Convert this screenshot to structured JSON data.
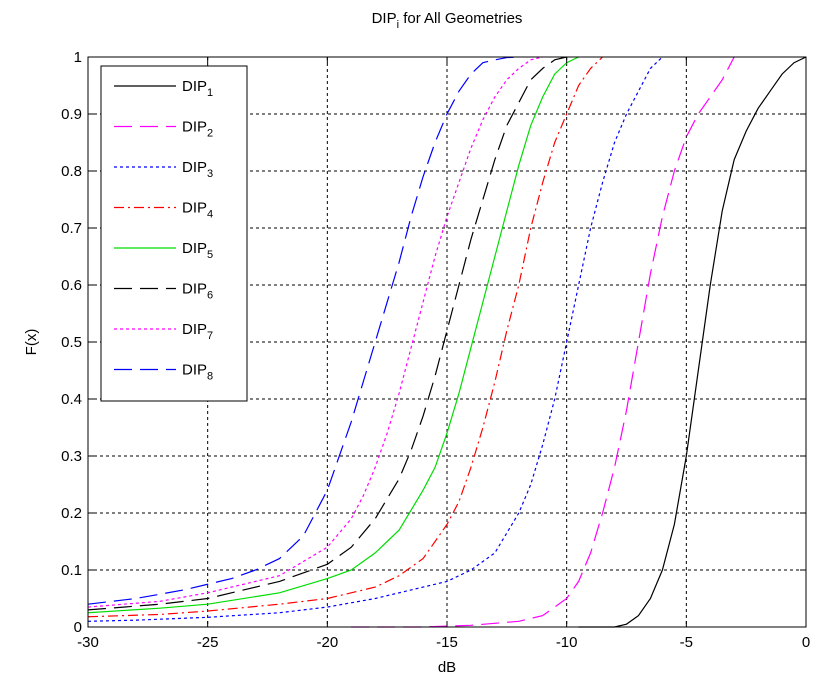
{
  "chart_data": {
    "type": "line",
    "title": "DIP",
    "title_sub": "i",
    "title_rest": " for All Geometries",
    "xlabel": "dB",
    "ylabel": "F(x)",
    "xlim": [
      -30,
      0
    ],
    "ylim": [
      0,
      1
    ],
    "grid": true,
    "legend_position": "top-left",
    "x_ticks": [
      -30,
      -25,
      -20,
      -15,
      -10,
      -5,
      0
    ],
    "y_ticks": [
      0,
      0.1,
      0.2,
      0.3,
      0.4,
      0.5,
      0.6,
      0.7,
      0.8,
      0.9,
      1
    ],
    "x_tick_labels": [
      "-30",
      "-25",
      "-20",
      "-15",
      "-10",
      "-5",
      "0"
    ],
    "y_tick_labels": [
      "0",
      "0.1",
      "0.2",
      "0.3",
      "0.4",
      "0.5",
      "0.6",
      "0.7",
      "0.8",
      "0.9",
      "1"
    ],
    "series": [
      {
        "name": "DIP",
        "sub": "1",
        "color": "#000000",
        "dash": "solid",
        "x": [
          -9.5,
          -8,
          -7.5,
          -7,
          -6.5,
          -6,
          -5.5,
          -5,
          -4.5,
          -4,
          -3.5,
          -3,
          -2.5,
          -2,
          -1.5,
          -1,
          -0.5,
          0
        ],
        "y": [
          0,
          0,
          0.005,
          0.02,
          0.05,
          0.1,
          0.18,
          0.3,
          0.45,
          0.6,
          0.73,
          0.82,
          0.87,
          0.91,
          0.94,
          0.97,
          0.99,
          1
        ]
      },
      {
        "name": "DIP",
        "sub": "2",
        "color": "#ff00ff",
        "dash": "longdash",
        "x": [
          -19,
          -16,
          -14,
          -12,
          -11,
          -10,
          -9.5,
          -9,
          -8.5,
          -8,
          -7.5,
          -7,
          -6.5,
          -6,
          -5.5,
          -5,
          -4.5,
          -4,
          -3.5,
          -3
        ],
        "y": [
          0,
          0,
          0.003,
          0.01,
          0.02,
          0.05,
          0.08,
          0.13,
          0.2,
          0.28,
          0.38,
          0.5,
          0.62,
          0.72,
          0.8,
          0.86,
          0.9,
          0.93,
          0.96,
          1
        ]
      },
      {
        "name": "DIP",
        "sub": "3",
        "color": "#0000ff",
        "dash": "dot",
        "x": [
          -30,
          -28,
          -25,
          -22,
          -20,
          -18,
          -16,
          -15,
          -14,
          -13,
          -12,
          -11.5,
          -11,
          -10.5,
          -10,
          -9.5,
          -9,
          -8.5,
          -8,
          -7.5,
          -7,
          -6.5,
          -6
        ],
        "y": [
          0.01,
          0.012,
          0.017,
          0.025,
          0.035,
          0.05,
          0.07,
          0.08,
          0.1,
          0.13,
          0.2,
          0.25,
          0.32,
          0.4,
          0.5,
          0.6,
          0.7,
          0.78,
          0.85,
          0.9,
          0.94,
          0.98,
          1
        ]
      },
      {
        "name": "DIP",
        "sub": "4",
        "color": "#ff0000",
        "dash": "dashdot",
        "x": [
          -30,
          -27,
          -25,
          -22,
          -20,
          -18,
          -17,
          -16,
          -15,
          -14.5,
          -14,
          -13.5,
          -13,
          -12.5,
          -12,
          -11.5,
          -11,
          -10.5,
          -10,
          -9.5,
          -9,
          -8.5
        ],
        "y": [
          0.018,
          0.022,
          0.028,
          0.04,
          0.05,
          0.07,
          0.09,
          0.12,
          0.18,
          0.22,
          0.28,
          0.35,
          0.43,
          0.52,
          0.6,
          0.7,
          0.78,
          0.85,
          0.9,
          0.95,
          0.98,
          1
        ]
      },
      {
        "name": "DIP",
        "sub": "5",
        "color": "#00dd00",
        "dash": "solid",
        "x": [
          -30,
          -27,
          -25,
          -22,
          -20,
          -19,
          -18,
          -17,
          -16,
          -15.5,
          -15,
          -14.5,
          -14,
          -13.5,
          -13,
          -12.5,
          -12,
          -11.5,
          -11,
          -10.5,
          -10,
          -9.5
        ],
        "y": [
          0.025,
          0.033,
          0.04,
          0.06,
          0.085,
          0.1,
          0.13,
          0.17,
          0.24,
          0.28,
          0.34,
          0.41,
          0.49,
          0.57,
          0.65,
          0.73,
          0.81,
          0.88,
          0.93,
          0.97,
          0.99,
          1
        ]
      },
      {
        "name": "DIP",
        "sub": "6",
        "color": "#000000",
        "dash": "longdash",
        "x": [
          -30,
          -27,
          -25,
          -22,
          -20,
          -19,
          -18,
          -17,
          -16.5,
          -16,
          -15.5,
          -15,
          -14.5,
          -14,
          -13.5,
          -13,
          -12.5,
          -12,
          -11.5,
          -11,
          -10.5,
          -10
        ],
        "y": [
          0.03,
          0.04,
          0.05,
          0.08,
          0.11,
          0.14,
          0.19,
          0.26,
          0.31,
          0.37,
          0.44,
          0.52,
          0.6,
          0.68,
          0.75,
          0.82,
          0.88,
          0.92,
          0.96,
          0.98,
          0.995,
          1
        ]
      },
      {
        "name": "DIP",
        "sub": "7",
        "color": "#ff00ff",
        "dash": "dot",
        "x": [
          -30,
          -27,
          -25,
          -22,
          -20,
          -19,
          -18.5,
          -18,
          -17.5,
          -17,
          -16.5,
          -16,
          -15.5,
          -15,
          -14.5,
          -14,
          -13.5,
          -13,
          -12.5,
          -12,
          -11.5,
          -11
        ],
        "y": [
          0.035,
          0.045,
          0.06,
          0.09,
          0.14,
          0.19,
          0.23,
          0.28,
          0.34,
          0.41,
          0.49,
          0.57,
          0.65,
          0.72,
          0.78,
          0.84,
          0.89,
          0.93,
          0.96,
          0.98,
          0.995,
          1
        ]
      },
      {
        "name": "DIP",
        "sub": "8",
        "color": "#0000ff",
        "dash": "longdash",
        "x": [
          -30,
          -28,
          -26,
          -24,
          -23,
          -22,
          -21,
          -20,
          -19.5,
          -19,
          -18.5,
          -18,
          -17.5,
          -17,
          -16.5,
          -16,
          -15.5,
          -15,
          -14.5,
          -14,
          -13.5,
          -13,
          -12.5,
          -12
        ],
        "y": [
          0.04,
          0.05,
          0.065,
          0.085,
          0.1,
          0.12,
          0.16,
          0.24,
          0.3,
          0.36,
          0.43,
          0.5,
          0.57,
          0.64,
          0.72,
          0.79,
          0.85,
          0.9,
          0.94,
          0.97,
          0.99,
          0.995,
          0.999,
          1
        ]
      }
    ]
  }
}
